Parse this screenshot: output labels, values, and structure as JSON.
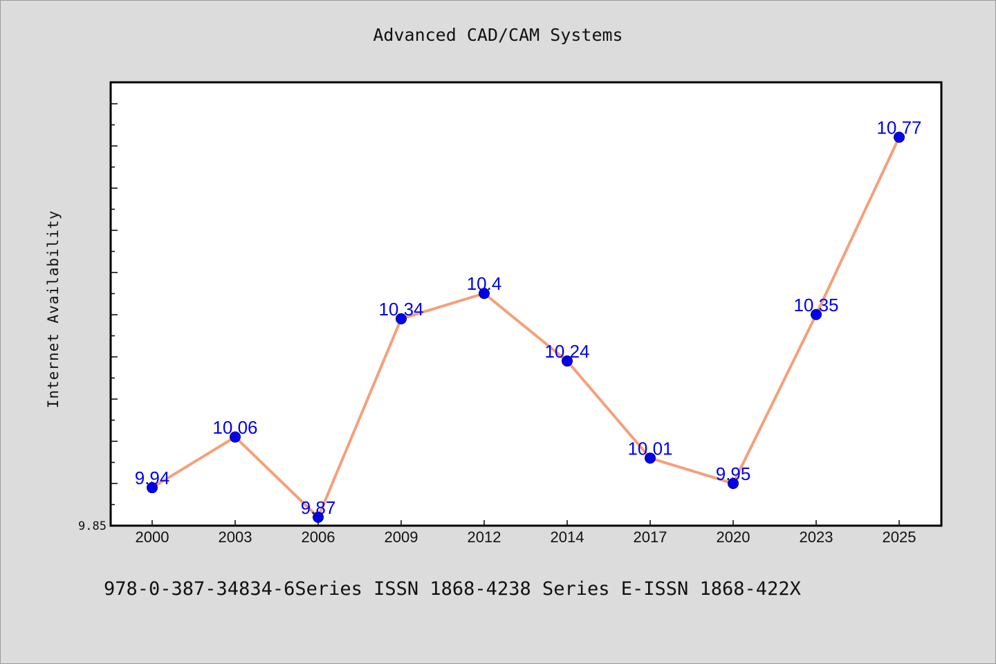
{
  "chart_data": {
    "type": "line",
    "title": "Advanced CAD/CAM Systems",
    "xlabel": "",
    "ylabel": "Internet Availability",
    "categories": [
      "2000",
      "2003",
      "2006",
      "2009",
      "2012",
      "2014",
      "2017",
      "2020",
      "2023",
      "2025"
    ],
    "series": [
      {
        "values": [
          9.94,
          10.06,
          9.87,
          10.34,
          10.4,
          10.24,
          10.01,
          9.95,
          10.35,
          10.77
        ]
      }
    ],
    "data_labels": [
      "9.94",
      "10.06",
      "9.87",
      "10.34",
      "10.4",
      "10.24",
      "10.01",
      "9.95",
      "10.35",
      "10.77"
    ],
    "ylim": [
      9.85,
      10.9
    ],
    "y_tick_labels": [
      "9.85"
    ],
    "grid": false,
    "line_color": "#f4a07a",
    "marker_color": "#0000ee",
    "label_color": "#0000ee"
  },
  "footer": {
    "text": "978-0-387-34834-6Series ISSN 1868-4238 Series E-ISSN 1868-422X"
  }
}
